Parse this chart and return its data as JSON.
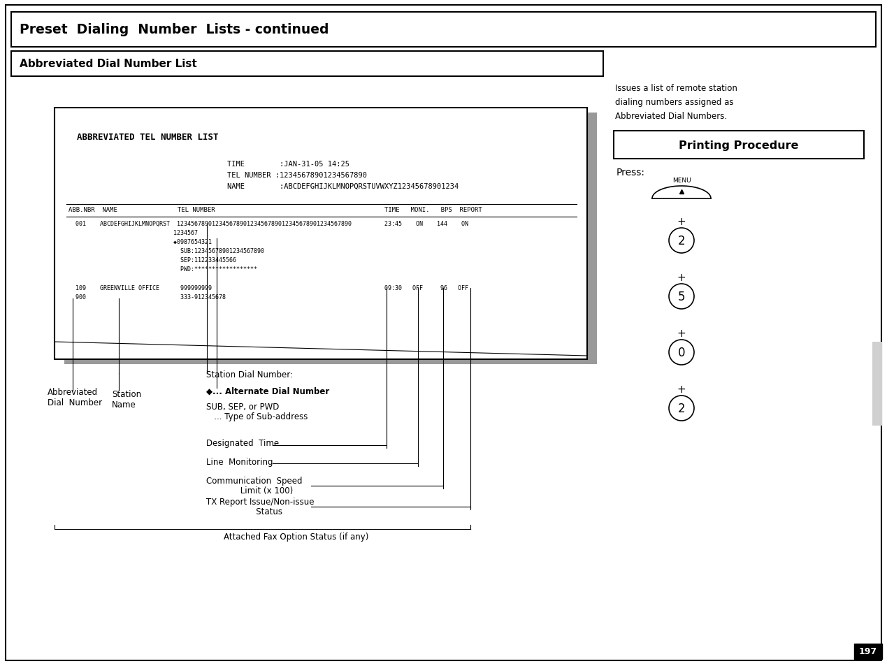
{
  "title1": "Preset  Dialing  Number  Lists - continued",
  "title2": "Abbreviated Dial Number List",
  "right_desc": "Issues a list of remote station\ndialing numbers assigned as\nAbbreviated Dial Numbers.",
  "pp_title": "Printing Procedure",
  "press_label": "Press:",
  "page_num": "197",
  "report_header": "ABBREVIATED TEL NUMBER LIST",
  "time_str": "TIME        :JAN-31-05 14:25",
  "tel_str": "TEL NUMBER :12345678901234567890",
  "name_str": "NAME        :ABCDEFGHIJKLMNOPQRSTUVWXYZ12345678901234",
  "col_hdr1": "ABB.NBR  NAME                TEL NUMBER",
  "col_hdr2": "TIME   MONI.   BPS  REPORT",
  "row1_main": "  001    ABCDEFGHIJKLMNOPQRST  12345678901234567890123456789012345678901234567890",
  "row1_time": "23:45    ON    144    ON",
  "row1_b": "                              1234567",
  "row1_c": "                              ◆0987654321",
  "row1_d": "                                SUB:12345678901234567890",
  "row1_e": "                                SEP:112233445566",
  "row1_f": "                                PWD:******************",
  "row2_main": "  109    GREENVILLE OFFICE      999999999",
  "row2_time": "09:30   OFF     96   OFF",
  "row2_b": "  900                           333-912345678",
  "lbl_abbr": "Abbreviated\nDial  Number",
  "lbl_station_name": "Station\nName",
  "lbl_station_dial": "Station Dial Number:",
  "lbl_alt_dial": "◆... Alternate Dial Number",
  "lbl_sub_line1": "SUB, SEP, or PWD",
  "lbl_sub_line2": "   ... Type of Sub-address",
  "lbl_desig": "Designated  Time",
  "lbl_line_mon": "Line  Monitoring",
  "lbl_comm_line1": "Communication  Speed",
  "lbl_comm_line2": "             Limit (x 100)",
  "lbl_tx_line1": "TX Report Issue/Non-issue",
  "lbl_tx_line2": "                   Status",
  "lbl_fax": "Attached Fax Option Status (if any)",
  "shadow_color": "#999999",
  "gray_bar_color": "#d0d0d0"
}
